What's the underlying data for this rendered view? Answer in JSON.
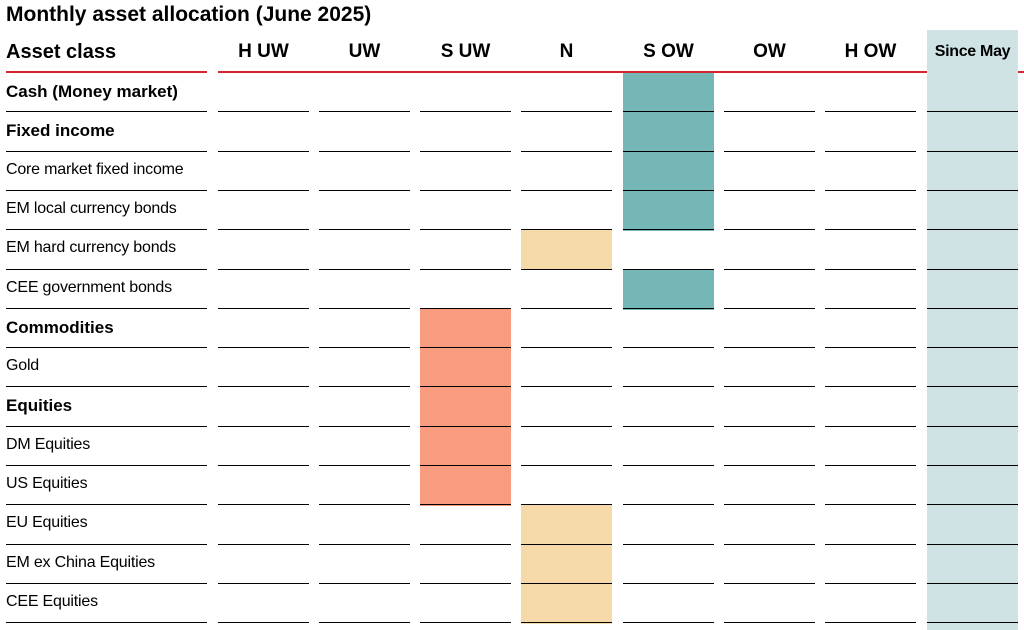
{
  "title": "Monthly asset allocation (June 2025)",
  "chart_data": {
    "type": "table",
    "title": "Monthly asset allocation (June 2025)",
    "row_header": "Asset class",
    "columns": [
      "H UW",
      "UW",
      "S UW",
      "N",
      "S OW",
      "OW",
      "H OW",
      "Since May"
    ],
    "colors": {
      "S OW": "#75b7b7",
      "N": "#f6d9a9",
      "S UW": "#f99b7e",
      "since_bg": "#cfe3e4",
      "header_rule": "#d7242f"
    },
    "rows": [
      {
        "name": "Cash (Money market)",
        "bold": true,
        "position": "S OW"
      },
      {
        "name": "Fixed income",
        "bold": true,
        "position": "S OW"
      },
      {
        "name": "Core market fixed income",
        "bold": false,
        "position": "S OW"
      },
      {
        "name": "EM local currency bonds",
        "bold": false,
        "position": "S OW"
      },
      {
        "name": "EM hard currency bonds",
        "bold": false,
        "position": "N"
      },
      {
        "name": "CEE government bonds",
        "bold": false,
        "position": "S OW"
      },
      {
        "name": "Commodities",
        "bold": true,
        "position": "S UW"
      },
      {
        "name": "Gold",
        "bold": false,
        "position": "S UW"
      },
      {
        "name": "Equities",
        "bold": true,
        "position": "S UW"
      },
      {
        "name": "DM Equities",
        "bold": false,
        "position": "S UW"
      },
      {
        "name": "US Equities",
        "bold": false,
        "position": "S UW"
      },
      {
        "name": "EU Equities",
        "bold": false,
        "position": "N"
      },
      {
        "name": "EM ex China Equities",
        "bold": false,
        "position": "N"
      },
      {
        "name": "CEE Equities",
        "bold": false,
        "position": "N"
      }
    ]
  }
}
